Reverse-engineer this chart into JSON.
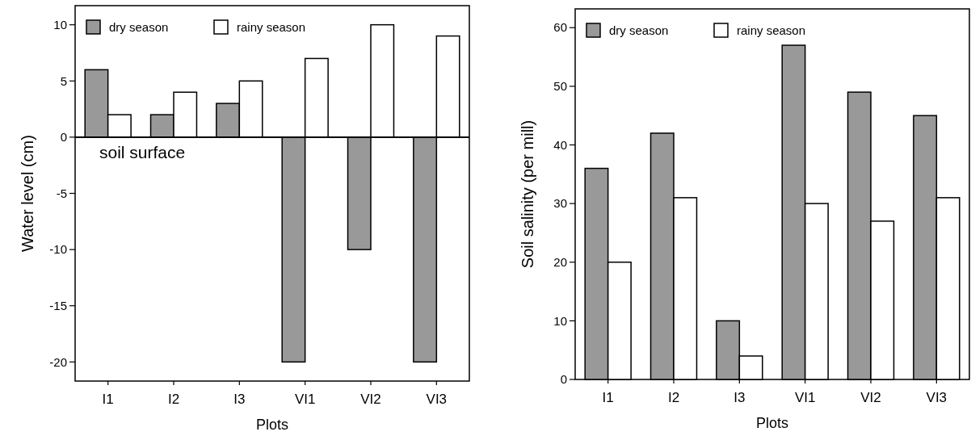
{
  "chart_data": [
    {
      "type": "bar",
      "xlabel": "Plots",
      "ylabel": "Water level (cm)",
      "categories": [
        "I1",
        "I2",
        "I3",
        "VI1",
        "VI2",
        "VI3"
      ],
      "series": [
        {
          "name": "dry season",
          "color": "#999999",
          "values": [
            6,
            2,
            3,
            -20,
            -10,
            -20
          ]
        },
        {
          "name": "rainy season",
          "color": "#ffffff",
          "values": [
            2,
            4,
            5,
            7,
            10,
            9
          ]
        }
      ],
      "ylim": [
        -21.7,
        11.7
      ],
      "yticks": [
        -20,
        -15,
        -10,
        -5,
        0,
        5,
        10
      ],
      "ref_lines": [
        {
          "axis": "y",
          "value": 0,
          "label": "soil surface",
          "color": "#000000"
        }
      ],
      "legend": "top left"
    },
    {
      "type": "bar",
      "xlabel": "Plots",
      "ylabel": "Soil salinity (per mill)",
      "categories": [
        "I1",
        "I2",
        "I3",
        "VI1",
        "VI2",
        "VI3"
      ],
      "series": [
        {
          "name": "dry season",
          "color": "#999999",
          "values": [
            36,
            42,
            10,
            57,
            49,
            45
          ]
        },
        {
          "name": "rainy season",
          "color": "#ffffff",
          "values": [
            20,
            31,
            4,
            30,
            27,
            31
          ]
        }
      ],
      "ylim": [
        0,
        63.2
      ],
      "yticks": [
        0,
        10,
        20,
        30,
        40,
        50,
        60
      ],
      "legend": "top left"
    }
  ]
}
